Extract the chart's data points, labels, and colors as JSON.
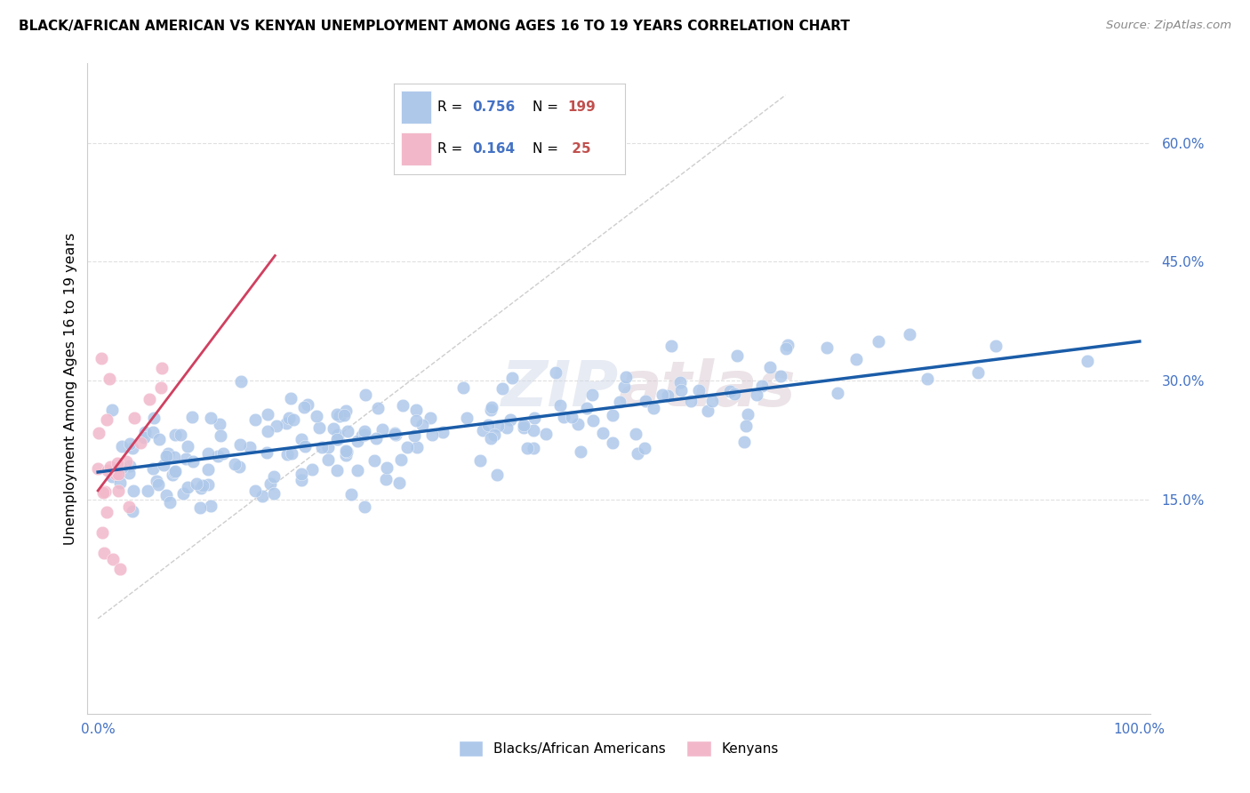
{
  "title": "BLACK/AFRICAN AMERICAN VS KENYAN UNEMPLOYMENT AMONG AGES 16 TO 19 YEARS CORRELATION CHART",
  "source": "Source: ZipAtlas.com",
  "ylabel": "Unemployment Among Ages 16 to 19 years",
  "blue_R": 0.756,
  "blue_N": 199,
  "pink_R": 0.164,
  "pink_N": 25,
  "blue_color": "#aec8ea",
  "blue_line_color": "#1a5ca8",
  "pink_color": "#f2b8ca",
  "pink_line_color": "#d04060",
  "diagonal_color": "#c8c8c8",
  "background_color": "#ffffff",
  "grid_color": "#e0e0e0",
  "legend_R_color": "#4472c4",
  "legend_N_color": "#c0504d",
  "xlim": [
    -0.01,
    1.01
  ],
  "ylim": [
    -0.12,
    0.7
  ],
  "yticks": [
    0.15,
    0.3,
    0.45,
    0.6
  ],
  "ytick_labels": [
    "15.0%",
    "30.0%",
    "45.0%",
    "60.0%"
  ],
  "xticks": [
    0.0,
    0.2,
    0.4,
    0.6,
    0.8,
    1.0
  ],
  "xtick_labels": [
    "0.0%",
    "",
    "",
    "",
    "",
    "100.0%"
  ]
}
